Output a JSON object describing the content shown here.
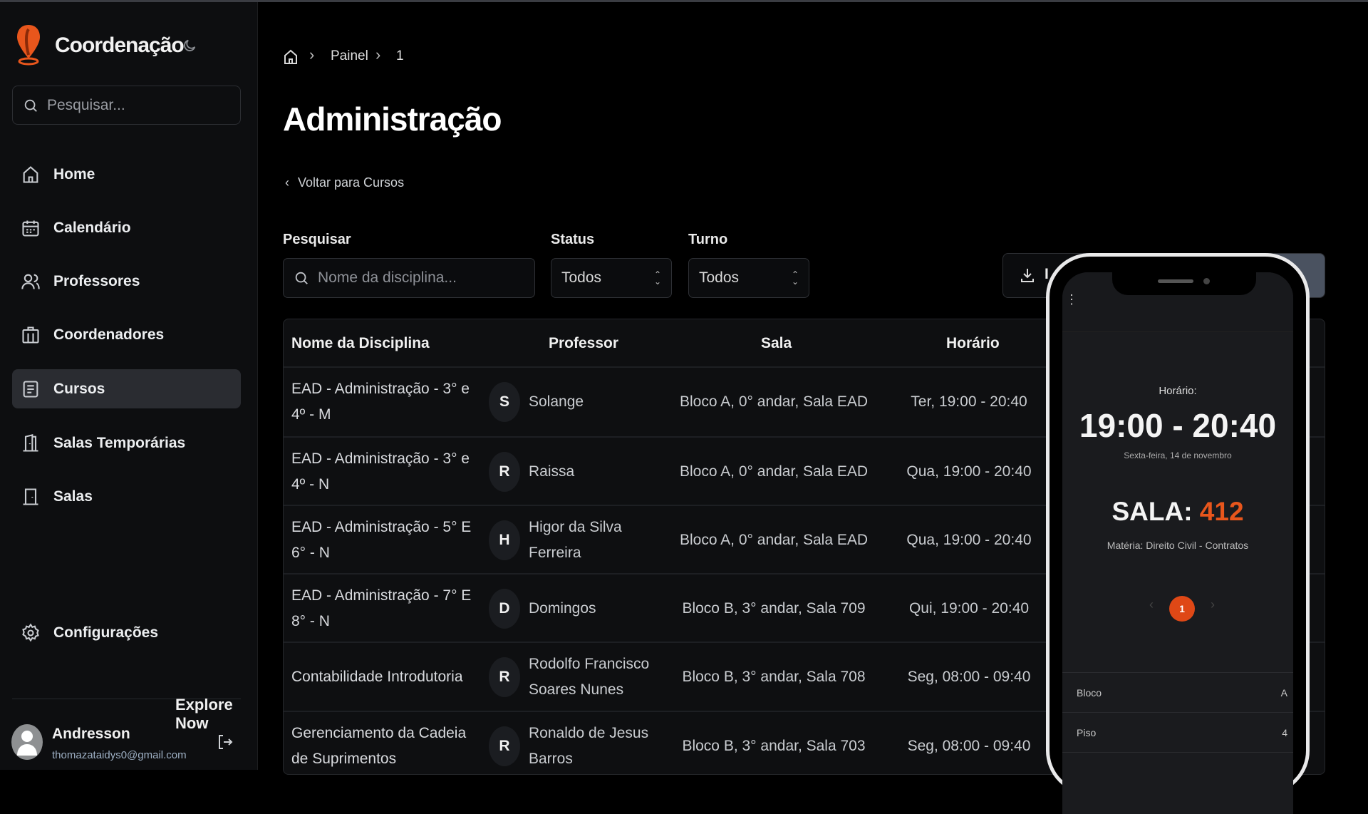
{
  "app": {
    "title": "Coordenação",
    "accent": "#e8561c"
  },
  "sidebar": {
    "search_placeholder": "Pesquisar...",
    "items": [
      {
        "label": "Home",
        "icon": "home-icon"
      },
      {
        "label": "Calendário",
        "icon": "calendar-icon"
      },
      {
        "label": "Professores",
        "icon": "users-icon"
      },
      {
        "label": "Coordenadores",
        "icon": "building-icon"
      },
      {
        "label": "Cursos",
        "icon": "book-icon",
        "active": true
      },
      {
        "label": "Salas Temporárias",
        "icon": "door-icon"
      },
      {
        "label": "Salas",
        "icon": "door-icon"
      }
    ],
    "settings": "Configurações",
    "explore": "Explore Now",
    "user": {
      "name": "Andresson",
      "email": "thomazataidys0@gmail.com"
    }
  },
  "breadcrumb": {
    "items": [
      "Painel",
      "1"
    ]
  },
  "page": {
    "title": "Administração",
    "back": "Voltar para Cursos"
  },
  "filters": {
    "search_label": "Pesquisar",
    "search_placeholder": "Nome da disciplina...",
    "status_label": "Status",
    "status_value": "Todos",
    "turno_label": "Turno",
    "turno_value": "Todos",
    "import_label": "I"
  },
  "table": {
    "headers": [
      "Nome da Disciplina",
      "Professor",
      "Sala",
      "Horário"
    ],
    "rows": [
      {
        "name": "EAD - Administração - 3° e 4º - M",
        "initial": "S",
        "professor": "Solange",
        "sala": "Bloco A, 0° andar, Sala EAD",
        "horario": "Ter, 19:00 - 20:40"
      },
      {
        "name": "EAD - Administração - 3° e 4º - N",
        "initial": "R",
        "professor": "Raissa",
        "sala": "Bloco A, 0° andar, Sala EAD",
        "horario": "Qua, 19:00 - 20:40"
      },
      {
        "name": "EAD - Administração - 5° E 6° - N",
        "initial": "H",
        "professor": "Higor da Silva Ferreira",
        "sala": "Bloco A, 0° andar, Sala EAD",
        "horario": "Qua, 19:00 - 20:40"
      },
      {
        "name": "EAD - Administração - 7° E 8° - N",
        "initial": "D",
        "professor": "Domingos",
        "sala": "Bloco B, 3° andar, Sala 709",
        "horario": "Qui, 19:00 - 20:40"
      },
      {
        "name": "Contabilidade Introdutoria",
        "initial": "R",
        "professor": "Rodolfo Francisco Soares Nunes",
        "sala": "Bloco B, 3° andar, Sala 708",
        "horario": "Seg, 08:00 - 09:40"
      },
      {
        "name": "Gerenciamento da Cadeia de Suprimentos",
        "initial": "R",
        "professor": "Ronaldo de Jesus Barros",
        "sala": "Bloco B, 3° andar, Sala 703",
        "horario": "Seg, 08:00 - 09:40"
      }
    ]
  },
  "phone": {
    "horario_label": "Horário:",
    "time": "19:00 - 20:40",
    "date": "Sexta-feira, 14 de novembro",
    "sala_label": "SALA:",
    "sala_value": "412",
    "materia": "Matéria: Direito Civil - Contratos",
    "page": "1",
    "details": [
      {
        "k": "Bloco",
        "v": "A"
      },
      {
        "k": "Piso",
        "v": "4"
      }
    ]
  }
}
